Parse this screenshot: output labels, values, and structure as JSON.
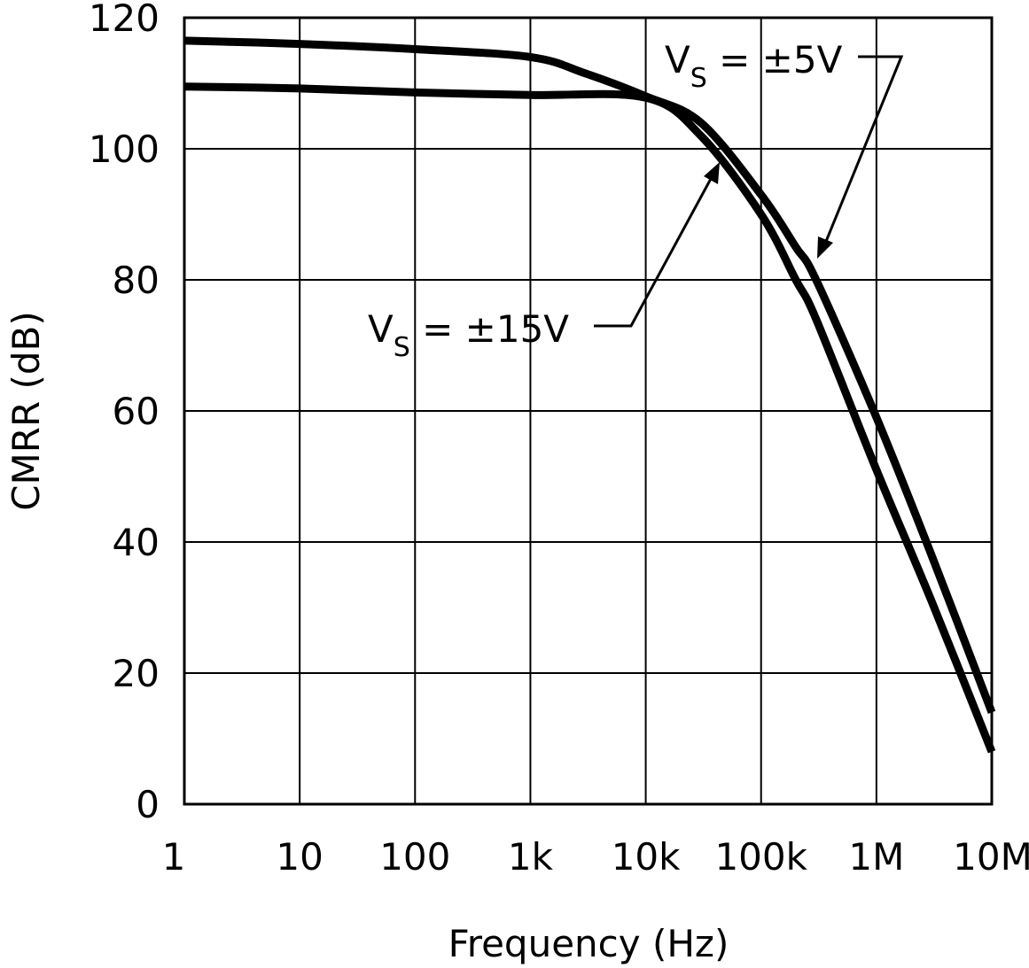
{
  "chart_data": {
    "type": "line",
    "xlabel": "Frequency (Hz)",
    "ylabel": "CMRR (dB)",
    "x_scale": "log",
    "xlim": [
      1,
      10000000
    ],
    "ylim": [
      0,
      120
    ],
    "grid": true,
    "x_ticks": [
      {
        "value": 1,
        "label": "1"
      },
      {
        "value": 10,
        "label": "10"
      },
      {
        "value": 100,
        "label": "100"
      },
      {
        "value": 1000,
        "label": "1k"
      },
      {
        "value": 10000,
        "label": "10k"
      },
      {
        "value": 100000,
        "label": "100k"
      },
      {
        "value": 1000000,
        "label": "1M"
      },
      {
        "value": 10000000,
        "label": "10M"
      }
    ],
    "y_ticks": [
      {
        "value": 0,
        "label": "0"
      },
      {
        "value": 20,
        "label": "20"
      },
      {
        "value": 40,
        "label": "40"
      },
      {
        "value": 60,
        "label": "60"
      },
      {
        "value": 80,
        "label": "80"
      },
      {
        "value": 100,
        "label": "100"
      },
      {
        "value": 120,
        "label": "120"
      }
    ],
    "series": [
      {
        "name": "VS = ±5V",
        "name_main": "V",
        "name_sub": "S",
        "name_rest": " = ±5V",
        "color": "#000000",
        "x": [
          1,
          10,
          100,
          1000,
          3000,
          10000,
          30000,
          100000,
          200000,
          300000,
          1000000,
          3000000,
          10000000
        ],
        "y": [
          116.5,
          116,
          115.2,
          114,
          111.5,
          108,
          104,
          93,
          85,
          80,
          59,
          38,
          14
        ]
      },
      {
        "name": "VS = ±15V",
        "name_main": "V",
        "name_sub": "S",
        "name_rest": " = ±15V",
        "color": "#000000",
        "x": [
          1,
          10,
          100,
          1000,
          10000,
          30000,
          100000,
          200000,
          300000,
          1000000,
          3000000,
          10000000
        ],
        "y": [
          109.5,
          109.2,
          108.6,
          108.2,
          107.8,
          102,
          90,
          80,
          74,
          51,
          31,
          8
        ]
      }
    ]
  }
}
